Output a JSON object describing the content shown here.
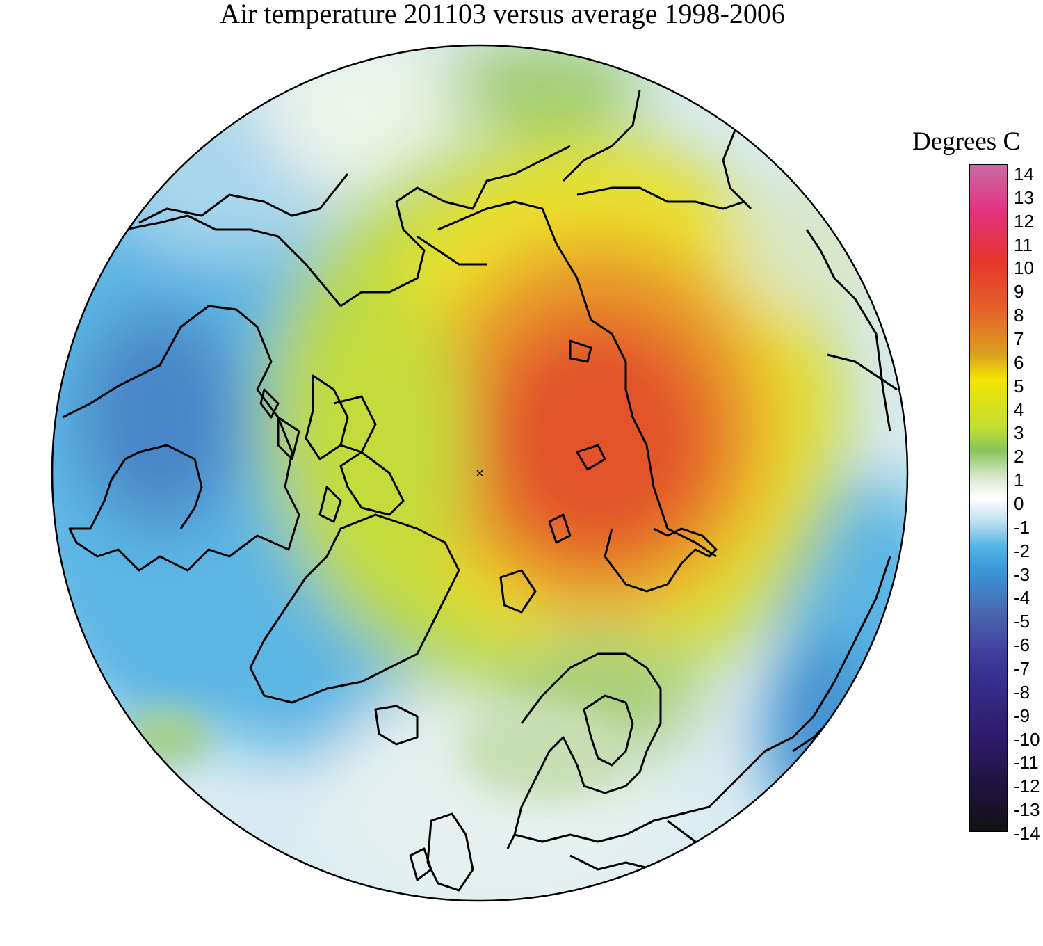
{
  "title": "Air temperature 201103 versus average 1998-2006",
  "legend": {
    "title": "Degrees C",
    "ticks": [
      "14",
      "13",
      "12",
      "11",
      "10",
      "9",
      "8",
      "7",
      "6",
      "5",
      "4",
      "3",
      "2",
      "1",
      "0",
      "-1",
      "-2",
      "-3",
      "-4",
      "-5",
      "-6",
      "-7",
      "-8",
      "-9",
      "-10",
      "-11",
      "-12",
      "-13",
      "-14"
    ],
    "stops": [
      {
        "value": 14,
        "color": "#c86aa6"
      },
      {
        "value": 12,
        "color": "#e2327e"
      },
      {
        "value": 10,
        "color": "#e4352d"
      },
      {
        "value": 8,
        "color": "#e65f2a"
      },
      {
        "value": 6,
        "color": "#d9a21f"
      },
      {
        "value": 5,
        "color": "#f3e400"
      },
      {
        "value": 3,
        "color": "#c3de32"
      },
      {
        "value": 2,
        "color": "#87c55a"
      },
      {
        "value": 1,
        "color": "#d3e3c4"
      },
      {
        "value": 0,
        "color": "#ffffff"
      },
      {
        "value": -1,
        "color": "#bfe0ef"
      },
      {
        "value": -2,
        "color": "#55b5e5"
      },
      {
        "value": -3,
        "color": "#3a98d6"
      },
      {
        "value": -5,
        "color": "#4a62ad"
      },
      {
        "value": -7,
        "color": "#3b3594"
      },
      {
        "value": -10,
        "color": "#2e1b6e"
      },
      {
        "value": -12,
        "color": "#1f1440"
      },
      {
        "value": -14,
        "color": "#111111"
      }
    ]
  },
  "map": {
    "projection": "north-polar-stereographic",
    "pole_marker": "×"
  }
}
